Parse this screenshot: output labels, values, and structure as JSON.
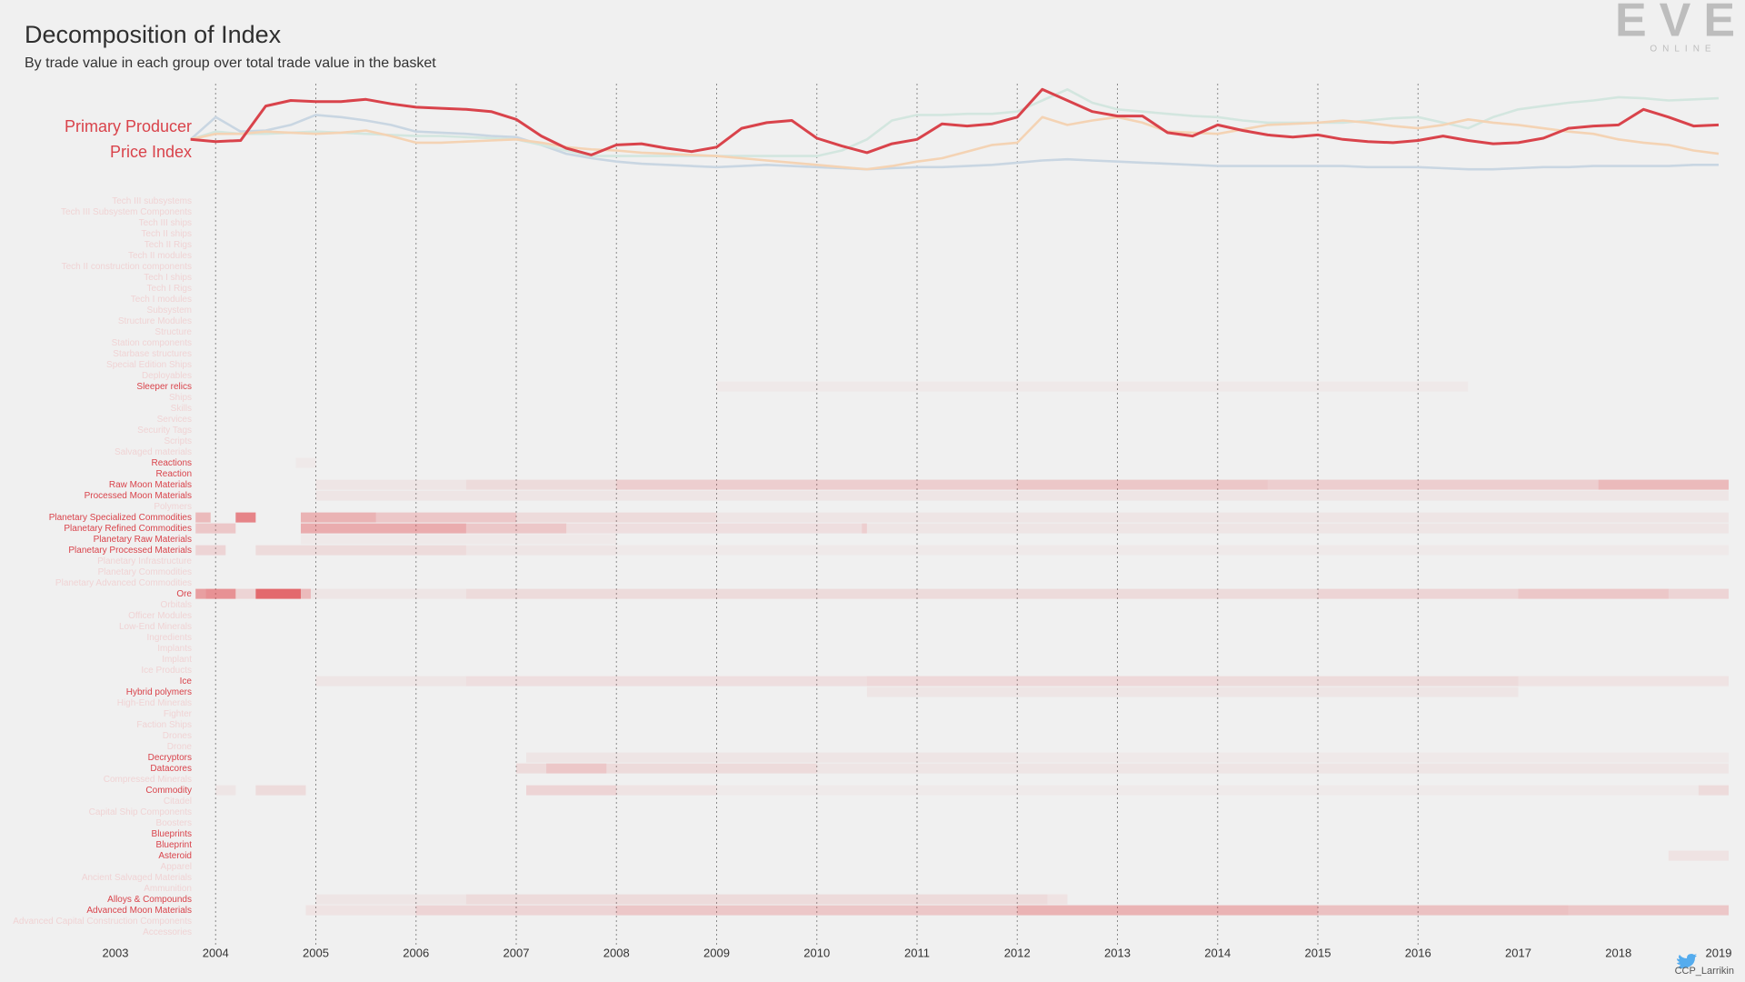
{
  "chart_data": [
    {
      "type": "line",
      "title": "Decomposition of Index",
      "subtitle": "By trade value in each group over total trade value in the basket",
      "label": [
        "Primary Producer",
        "Price Index"
      ],
      "label_color": "#d9434b",
      "xlim": [
        2003,
        2019
      ],
      "ylim": [
        0,
        95
      ],
      "x": [
        2003.75,
        2004,
        2004.25,
        2004.5,
        2004.75,
        2005,
        2005.25,
        2005.5,
        2005.75,
        2006,
        2006.25,
        2006.5,
        2006.75,
        2007,
        2007.25,
        2007.5,
        2007.75,
        2008,
        2008.25,
        2008.5,
        2008.75,
        2009,
        2009.25,
        2009.5,
        2009.75,
        2010,
        2010.25,
        2010.5,
        2010.75,
        2011,
        2011.25,
        2011.5,
        2011.75,
        2012,
        2012.25,
        2012.5,
        2012.75,
        2013,
        2013.25,
        2013.5,
        2013.75,
        2014,
        2014.25,
        2014.5,
        2014.75,
        2015,
        2015.25,
        2015.5,
        2015.75,
        2016,
        2016.25,
        2016.5,
        2016.75,
        2017,
        2017.25,
        2017.5,
        2017.75,
        2018,
        2018.25,
        2018.5,
        2018.75,
        2019
      ],
      "series": [
        {
          "color": "#c9d6e2",
          "values": [
            35,
            55,
            42,
            43,
            48,
            57,
            55,
            52,
            48,
            42,
            41,
            40,
            38,
            37,
            30,
            22,
            18,
            15,
            13,
            12,
            11,
            10,
            11,
            12,
            11,
            10,
            9,
            8,
            9,
            10,
            10,
            11,
            12,
            14,
            16,
            17,
            16,
            15,
            14,
            13,
            12,
            11,
            11,
            11,
            11,
            11,
            11,
            10,
            10,
            10,
            9,
            8,
            8,
            9,
            10,
            10,
            11,
            11,
            11,
            11,
            12,
            12
          ]
        },
        {
          "color": "#d3e6df",
          "values": [
            35,
            42,
            40,
            40,
            41,
            42,
            41,
            40,
            39,
            38,
            38,
            37,
            36,
            35,
            30,
            25,
            20,
            20,
            20,
            20,
            20,
            20,
            20,
            20,
            20,
            20,
            25,
            35,
            52,
            57,
            57,
            58,
            58,
            60,
            70,
            80,
            68,
            62,
            60,
            58,
            56,
            55,
            52,
            50,
            50,
            50,
            50,
            52,
            54,
            55,
            50,
            45,
            55,
            62,
            65,
            68,
            70,
            73,
            72,
            70,
            71,
            72
          ]
        },
        {
          "color": "#f4d3b4",
          "values": [
            35,
            40,
            40,
            42,
            41,
            40,
            41,
            43,
            38,
            32,
            32,
            33,
            34,
            35,
            32,
            28,
            26,
            25,
            23,
            22,
            21,
            20,
            18,
            16,
            14,
            12,
            10,
            8,
            11,
            15,
            18,
            24,
            30,
            32,
            55,
            48,
            52,
            55,
            50,
            42,
            41,
            40,
            44,
            48,
            49,
            50,
            52,
            50,
            47,
            45,
            48,
            53,
            50,
            48,
            45,
            42,
            40,
            35,
            32,
            30,
            25,
            22
          ]
        },
        {
          "color": "#d9434b",
          "values": [
            35,
            33,
            34,
            65,
            70,
            69,
            69,
            71,
            67,
            64,
            63,
            62,
            60,
            53,
            38,
            27,
            21,
            30,
            31,
            27,
            24,
            28,
            45,
            50,
            52,
            36,
            29,
            23,
            31,
            35,
            49,
            47,
            49,
            55,
            80,
            70,
            60,
            56,
            56,
            41,
            38,
            48,
            43,
            39,
            37,
            39,
            35,
            33,
            32,
            34,
            38,
            34,
            31,
            32,
            36,
            45,
            47,
            48,
            62,
            55,
            47,
            48
          ]
        }
      ]
    },
    {
      "type": "heatmap",
      "xlim": [
        2003,
        2019
      ],
      "xticks": [
        2003,
        2004,
        2005,
        2006,
        2007,
        2008,
        2009,
        2010,
        2011,
        2012,
        2013,
        2014,
        2015,
        2016,
        2017,
        2018,
        2019
      ],
      "grid_x": [
        2004,
        2005,
        2006,
        2007,
        2008,
        2009,
        2010,
        2011,
        2012,
        2013,
        2014,
        2015,
        2016
      ],
      "zlim": [
        0,
        25
      ],
      "color": "#e0474c",
      "highlight_color": "#d9434b",
      "faint_color": "#f0d3d4",
      "categories": [
        "Tech III subsystems",
        "Tech III Subsystem Components",
        "Tech III ships",
        "Tech II ships",
        "Tech II Rigs",
        "Tech II modules",
        "Tech II construction components",
        "Tech I ships",
        "Tech I Rigs",
        "Tech I modules",
        "Subsystem",
        "Structure Modules",
        "Structure",
        "Station components",
        "Starbase structures",
        "Special Edition Ships",
        "Deployables",
        "Sleeper relics",
        "Ships",
        "Skills",
        "Services",
        "Security Tags",
        "Scripts",
        "Salvaged materials",
        "Reactions",
        "Reaction",
        "Raw Moon Materials",
        "Processed Moon Materials",
        "Polymers",
        "Planetary Specialized Commodities",
        "Planetary Refined Commodities",
        "Planetary Raw Materials",
        "Planetary Processed Materials",
        "Planetary Infrastructure",
        "Planetary Commodities",
        "Planetary Advanced Commodities",
        "Ore",
        "Orbitals",
        "Officer Modules",
        "Low-End Minerals",
        "Ingredients",
        "Implants",
        "Implant",
        "Ice Products",
        "Ice",
        "Hybrid polymers",
        "High-End Minerals",
        "Fighter",
        "Faction Ships",
        "Drones",
        "Drone",
        "Decryptors",
        "Datacores",
        "Compressed Minerals",
        "Commodity",
        "Citadel",
        "Capital Ship Components",
        "Boosters",
        "Blueprints",
        "Blueprint",
        "Asteroid",
        "Apparel",
        "Ancient Salvaged Materials",
        "Ammunition",
        "Alloys & Compounds",
        "Advanced Moon Materials",
        "Advanced Capital Construction Components",
        "Accessories"
      ],
      "highlighted": [
        false,
        false,
        false,
        false,
        false,
        false,
        false,
        false,
        false,
        false,
        false,
        false,
        false,
        false,
        false,
        false,
        false,
        true,
        false,
        false,
        false,
        false,
        false,
        false,
        true,
        true,
        true,
        true,
        false,
        true,
        true,
        true,
        true,
        false,
        false,
        false,
        true,
        false,
        false,
        false,
        false,
        false,
        false,
        false,
        true,
        true,
        false,
        false,
        false,
        false,
        false,
        true,
        true,
        false,
        true,
        false,
        false,
        false,
        true,
        true,
        true,
        false,
        false,
        false,
        true,
        true,
        false,
        false
      ],
      "rows": [
        [],
        [],
        [],
        [],
        [],
        [],
        [],
        [],
        [],
        [],
        [],
        [],
        [],
        [],
        [],
        [],
        [],
        [
          [
            2009.0,
            2016.5,
            1
          ]
        ],
        [],
        [],
        [],
        [],
        [],
        [],
        [
          [
            2004.8,
            2005.0,
            1
          ]
        ],
        [],
        [
          [
            2005,
            2006.5,
            1.5
          ],
          [
            2006.5,
            2008,
            3
          ],
          [
            2008,
            2012,
            5
          ],
          [
            2012,
            2014.5,
            6
          ],
          [
            2014.5,
            2017.8,
            5
          ],
          [
            2017.8,
            2019.1,
            8
          ]
        ],
        [
          [
            2005,
            2019.1,
            1.5
          ]
        ],
        [],
        [
          [
            2003.8,
            2003.95,
            8
          ],
          [
            2004.2,
            2004.4,
            16
          ],
          [
            2004.85,
            2005.6,
            9
          ],
          [
            2005.6,
            2007,
            6
          ],
          [
            2007,
            2009,
            3
          ],
          [
            2009,
            2019.1,
            1.5
          ]
        ],
        [
          [
            2003.8,
            2004.2,
            6
          ],
          [
            2004.85,
            2006.5,
            10
          ],
          [
            2006.5,
            2007.5,
            6
          ],
          [
            2007.5,
            2010.45,
            2.5
          ],
          [
            2010.45,
            2010.5,
            5
          ],
          [
            2010.5,
            2019.1,
            1.5
          ]
        ],
        [
          [
            2004.85,
            2008,
            1
          ]
        ],
        [
          [
            2003.8,
            2004.1,
            4
          ],
          [
            2004.4,
            2006.5,
            3
          ],
          [
            2006.5,
            2008,
            1.5
          ],
          [
            2008,
            2019.1,
            1
          ]
        ],
        [],
        [],
        [],
        [
          [
            2003.8,
            2003.9,
            12
          ],
          [
            2003.9,
            2004.2,
            14
          ],
          [
            2004.2,
            2004.4,
            4
          ],
          [
            2004.4,
            2004.85,
            20
          ],
          [
            2004.85,
            2004.95,
            8
          ],
          [
            2004.95,
            2006.5,
            1.5
          ],
          [
            2006.5,
            2015,
            3
          ],
          [
            2015,
            2017,
            4
          ],
          [
            2017,
            2018.5,
            6
          ],
          [
            2018.5,
            2019.1,
            4
          ]
        ],
        [],
        [],
        [],
        [],
        [],
        [],
        [],
        [
          [
            2005,
            2006.5,
            1.5
          ],
          [
            2006.5,
            2010.5,
            2.5
          ],
          [
            2010.5,
            2014,
            3.5
          ],
          [
            2014,
            2017,
            3
          ],
          [
            2017,
            2019.1,
            2
          ]
        ],
        [
          [
            2010.5,
            2017,
            1.5
          ]
        ],
        [],
        [],
        [],
        [],
        [],
        [
          [
            2007.1,
            2012,
            1.5
          ],
          [
            2012,
            2019.1,
            1
          ]
        ],
        [
          [
            2007,
            2007.3,
            3
          ],
          [
            2007.3,
            2007.9,
            6
          ],
          [
            2007.9,
            2010,
            3
          ],
          [
            2010,
            2019.1,
            1.5
          ]
        ],
        [],
        [
          [
            2004,
            2004.2,
            1.5
          ],
          [
            2004.4,
            2004.9,
            3
          ],
          [
            2007.1,
            2008,
            4
          ],
          [
            2008,
            2009,
            2
          ],
          [
            2009,
            2018.8,
            0.8
          ],
          [
            2018.8,
            2019.1,
            3
          ]
        ],
        [],
        [],
        [],
        [],
        [],
        [
          [
            2018.5,
            2019.1,
            2
          ]
        ],
        [],
        [],
        [],
        [
          [
            2005,
            2006.5,
            1.5
          ],
          [
            2006.5,
            2012.3,
            3
          ],
          [
            2012.3,
            2012.5,
            2
          ]
        ],
        [
          [
            2004.9,
            2006,
            2
          ],
          [
            2006,
            2008,
            4
          ],
          [
            2008,
            2012,
            6
          ],
          [
            2012,
            2015,
            9
          ],
          [
            2015,
            2017.5,
            7
          ],
          [
            2017.5,
            2019.1,
            6
          ]
        ],
        [],
        []
      ]
    }
  ],
  "logo": {
    "name": "EVE",
    "sub": "ONLINE"
  },
  "credit": "CCP_Larrikin"
}
